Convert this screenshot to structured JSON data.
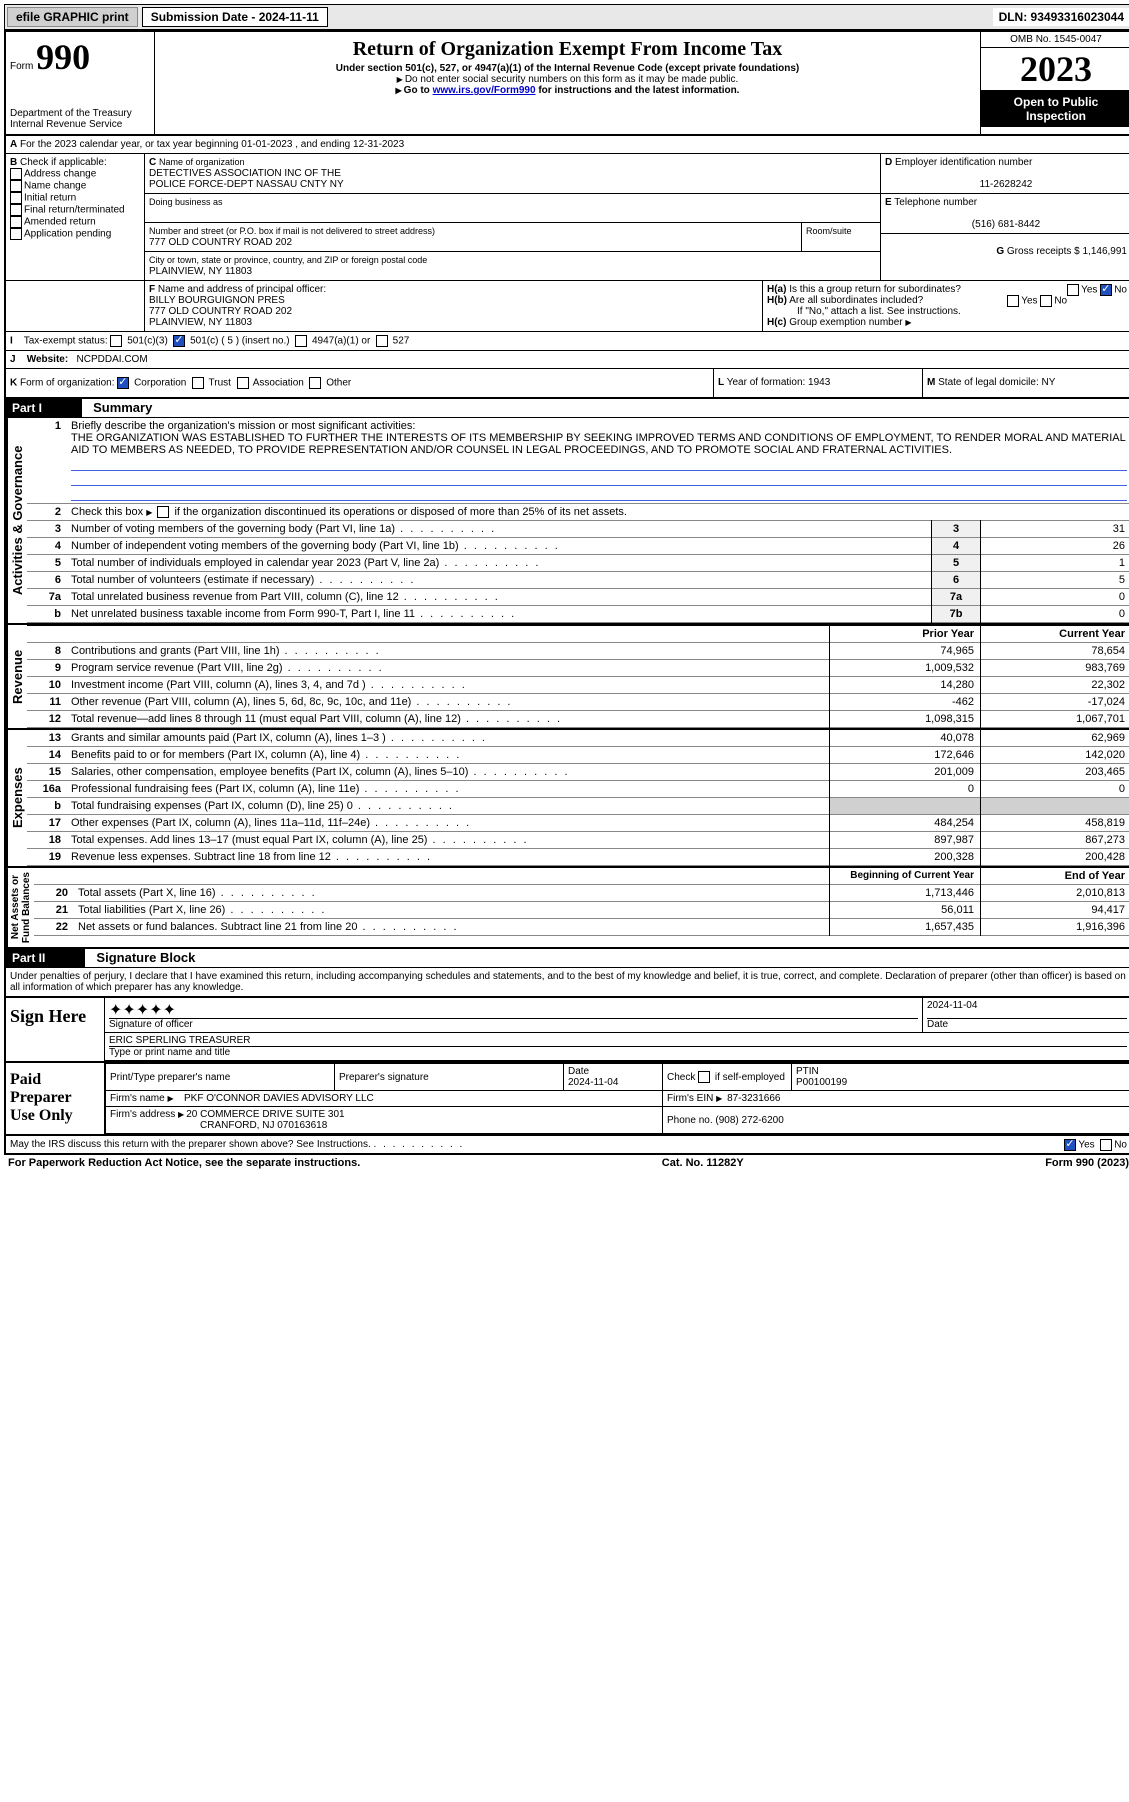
{
  "topbar": {
    "efile": "efile GRAPHIC print",
    "sub_label": "Submission Date - 2024-11-11",
    "dln": "DLN: 93493316023044"
  },
  "header": {
    "form_prefix": "Form",
    "form_num": "990",
    "dept": "Department of the Treasury",
    "irs": "Internal Revenue Service",
    "title": "Return of Organization Exempt From Income Tax",
    "sub1": "Under section 501(c), 527, or 4947(a)(1) of the Internal Revenue Code (except private foundations)",
    "sub2": "Do not enter social security numbers on this form as it may be made public.",
    "sub3_pre": "Go to ",
    "sub3_link": "www.irs.gov/Form990",
    "sub3_post": " for instructions and the latest information.",
    "omb": "OMB No. 1545-0047",
    "year": "2023",
    "open": "Open to Public Inspection"
  },
  "line_a": "For the 2023 calendar year, or tax year beginning 01-01-2023   , and ending 12-31-2023",
  "box_b": {
    "label": "Check if applicable:",
    "opts": [
      "Address change",
      "Name change",
      "Initial return",
      "Final return/terminated",
      "Amended return",
      "Application pending"
    ]
  },
  "box_c": {
    "name_label": "Name of organization",
    "name1": "DETECTIVES ASSOCIATION INC OF THE",
    "name2": "POLICE FORCE-DEPT NASSAU CNTY NY",
    "dba_label": "Doing business as",
    "addr_label": "Number and street (or P.O. box if mail is not delivered to street address)",
    "room_label": "Room/suite",
    "addr": "777 OLD COUNTRY ROAD 202",
    "city_label": "City or town, state or province, country, and ZIP or foreign postal code",
    "city": "PLAINVIEW, NY  11803"
  },
  "box_d": {
    "label": "Employer identification number",
    "val": "11-2628242"
  },
  "box_e": {
    "label": "Telephone number",
    "val": "(516) 681-8442"
  },
  "box_g": {
    "label": "Gross receipts $",
    "val": "1,146,991"
  },
  "box_f": {
    "label": "Name and address of principal officer:",
    "name": "BILLY BOURGUIGNON PRES",
    "addr": "777 OLD COUNTRY ROAD 202",
    "city": "PLAINVIEW, NY  11803"
  },
  "box_h": {
    "a": "Is this a group return for subordinates?",
    "b": "Are all subordinates included?",
    "note": "If \"No,\" attach a list. See instructions.",
    "c": "Group exemption number"
  },
  "box_i": {
    "label": "Tax-exempt status:",
    "c3": "501(c)(3)",
    "c": "501(c) ( 5 ) (insert no.)",
    "a1": "4947(a)(1) or",
    "s527": "527"
  },
  "box_j": {
    "label": "Website:",
    "val": "NCPDDAI.COM"
  },
  "box_k": {
    "label": "Form of organization:",
    "opts": [
      "Corporation",
      "Trust",
      "Association",
      "Other"
    ]
  },
  "box_l": {
    "label": "Year of formation: 1943"
  },
  "box_m": {
    "label": "State of legal domicile: NY"
  },
  "part1": {
    "header": "Part I",
    "title": "Summary",
    "l1_label": "Briefly describe the organization's mission or most significant activities:",
    "l1_text": "THE ORGANIZATION WAS ESTABLISHED TO FURTHER THE INTERESTS OF ITS MEMBERSHIP BY SEEKING IMPROVED TERMS AND CONDITIONS OF EMPLOYMENT, TO RENDER MORAL AND MATERIAL AID TO MEMBERS AS NEEDED, TO PROVIDE REPRESENTATION AND/OR COUNSEL IN LEGAL PROCEEDINGS, AND TO PROMOTE SOCIAL AND FRATERNAL ACTIVITIES.",
    "l2": "Check this box      if the organization discontinued its operations or disposed of more than 25% of its net assets.",
    "rows_gov": [
      {
        "n": "3",
        "t": "Number of voting members of the governing body (Part VI, line 1a)",
        "box": "3",
        "v": "31"
      },
      {
        "n": "4",
        "t": "Number of independent voting members of the governing body (Part VI, line 1b)",
        "box": "4",
        "v": "26"
      },
      {
        "n": "5",
        "t": "Total number of individuals employed in calendar year 2023 (Part V, line 2a)",
        "box": "5",
        "v": "1"
      },
      {
        "n": "6",
        "t": "Total number of volunteers (estimate if necessary)",
        "box": "6",
        "v": "5"
      },
      {
        "n": "7a",
        "t": "Total unrelated business revenue from Part VIII, column (C), line 12",
        "box": "7a",
        "v": "0"
      },
      {
        "n": "b",
        "t": "Net unrelated business taxable income from Form 990-T, Part I, line 11",
        "box": "7b",
        "v": "0"
      }
    ],
    "col_prior": "Prior Year",
    "col_current": "Current Year",
    "rows_rev": [
      {
        "n": "8",
        "t": "Contributions and grants (Part VIII, line 1h)",
        "p": "74,965",
        "c": "78,654"
      },
      {
        "n": "9",
        "t": "Program service revenue (Part VIII, line 2g)",
        "p": "1,009,532",
        "c": "983,769"
      },
      {
        "n": "10",
        "t": "Investment income (Part VIII, column (A), lines 3, 4, and 7d )",
        "p": "14,280",
        "c": "22,302"
      },
      {
        "n": "11",
        "t": "Other revenue (Part VIII, column (A), lines 5, 6d, 8c, 9c, 10c, and 11e)",
        "p": "-462",
        "c": "-17,024"
      },
      {
        "n": "12",
        "t": "Total revenue—add lines 8 through 11 (must equal Part VIII, column (A), line 12)",
        "p": "1,098,315",
        "c": "1,067,701"
      }
    ],
    "rows_exp": [
      {
        "n": "13",
        "t": "Grants and similar amounts paid (Part IX, column (A), lines 1–3 )",
        "p": "40,078",
        "c": "62,969"
      },
      {
        "n": "14",
        "t": "Benefits paid to or for members (Part IX, column (A), line 4)",
        "p": "172,646",
        "c": "142,020"
      },
      {
        "n": "15",
        "t": "Salaries, other compensation, employee benefits (Part IX, column (A), lines 5–10)",
        "p": "201,009",
        "c": "203,465"
      },
      {
        "n": "16a",
        "t": "Professional fundraising fees (Part IX, column (A), line 11e)",
        "p": "0",
        "c": "0"
      },
      {
        "n": "b",
        "t": "Total fundraising expenses (Part IX, column (D), line 25) 0",
        "p": "",
        "c": "",
        "shaded": true
      },
      {
        "n": "17",
        "t": "Other expenses (Part IX, column (A), lines 11a–11d, 11f–24e)",
        "p": "484,254",
        "c": "458,819"
      },
      {
        "n": "18",
        "t": "Total expenses. Add lines 13–17 (must equal Part IX, column (A), line 25)",
        "p": "897,987",
        "c": "867,273"
      },
      {
        "n": "19",
        "t": "Revenue less expenses. Subtract line 18 from line 12",
        "p": "200,328",
        "c": "200,428"
      }
    ],
    "col_begin": "Beginning of Current Year",
    "col_end": "End of Year",
    "rows_net": [
      {
        "n": "20",
        "t": "Total assets (Part X, line 16)",
        "p": "1,713,446",
        "c": "2,010,813"
      },
      {
        "n": "21",
        "t": "Total liabilities (Part X, line 26)",
        "p": "56,011",
        "c": "94,417"
      },
      {
        "n": "22",
        "t": "Net assets or fund balances. Subtract line 21 from line 20",
        "p": "1,657,435",
        "c": "1,916,396"
      }
    ]
  },
  "part2": {
    "header": "Part II",
    "title": "Signature Block",
    "perjury": "Under penalties of perjury, I declare that I have examined this return, including accompanying schedules and statements, and to the best of my knowledge and belief, it is true, correct, and complete. Declaration of preparer (other than officer) is based on all information of which preparer has any knowledge."
  },
  "sign": {
    "label": "Sign Here",
    "sig_label": "Signature of officer",
    "date_label": "Date",
    "date_val": "2024-11-04",
    "officer": "ERIC SPERLING  TREASURER",
    "type_label": "Type or print name and title"
  },
  "preparer": {
    "label": "Paid Preparer Use Only",
    "print_label": "Print/Type preparer's name",
    "sig_label": "Preparer's signature",
    "date_label": "Date",
    "date_val": "2024-11-04",
    "check_label": "Check      if self-employed",
    "ptin_label": "PTIN",
    "ptin": "P00100199",
    "firm_name_label": "Firm's name",
    "firm_name": "PKF O'CONNOR DAVIES ADVISORY LLC",
    "firm_ein_label": "Firm's EIN",
    "firm_ein": "87-3231666",
    "firm_addr_label": "Firm's address",
    "firm_addr": "20 COMMERCE DRIVE SUITE 301",
    "firm_city": "CRANFORD, NJ  070163618",
    "phone_label": "Phone no.",
    "phone": "(908) 272-6200"
  },
  "discuss": "May the IRS discuss this return with the preparer shown above? See Instructions.",
  "footer": {
    "pra": "For Paperwork Reduction Act Notice, see the separate instructions.",
    "cat": "Cat. No. 11282Y",
    "form": "Form 990 (2023)"
  }
}
